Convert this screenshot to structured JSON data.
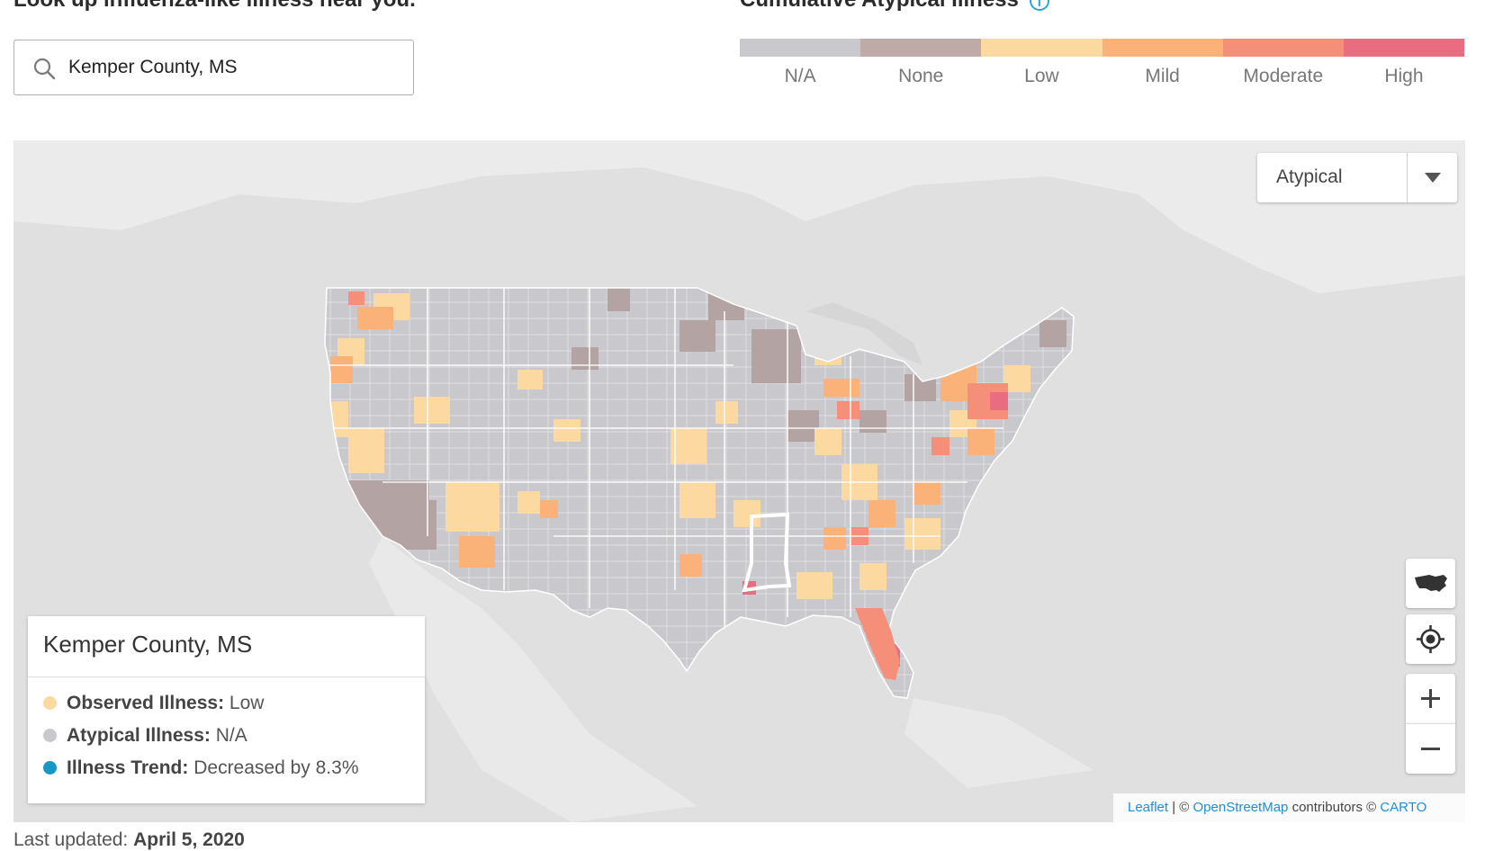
{
  "lookup": {
    "heading": "Look up influenza-like illness near you.",
    "search_value": "Kemper County, MS"
  },
  "legend": {
    "heading": "Cumulative Atypical Illness",
    "help_icon": "info-circle-icon",
    "items": [
      {
        "label": "N/A",
        "color": "#c9c8cd"
      },
      {
        "label": "None",
        "color": "#bdaaa9"
      },
      {
        "label": "Low",
        "color": "#fdd9a2"
      },
      {
        "label": "Mild",
        "color": "#fbb279"
      },
      {
        "label": "Moderate",
        "color": "#f58f7a"
      },
      {
        "label": "High",
        "color": "#e96c80"
      }
    ]
  },
  "map": {
    "dropdown_value": "Atypical",
    "selected_region": "Mississippi",
    "controls": [
      "us-map-icon",
      "locate-icon",
      "zoom-in-icon",
      "zoom-out-icon"
    ]
  },
  "info_panel": {
    "title": "Kemper County, MS",
    "rows": [
      {
        "label": "Observed Illness:",
        "value": "Low",
        "color": "#fdd9a2"
      },
      {
        "label": "Atypical Illness:",
        "value": "N/A",
        "color": "#c9c8cd"
      },
      {
        "label": "Illness Trend:",
        "value": "Decreased by 8.3%",
        "color": "#1797c6"
      }
    ]
  },
  "attribution": {
    "leaflet": "Leaflet",
    "sep": " | © ",
    "osm": "OpenStreetMap",
    "contributors": " contributors © ",
    "carto": "CARTO"
  },
  "footer": {
    "label": "Last updated:",
    "date": "April 5, 2020"
  }
}
